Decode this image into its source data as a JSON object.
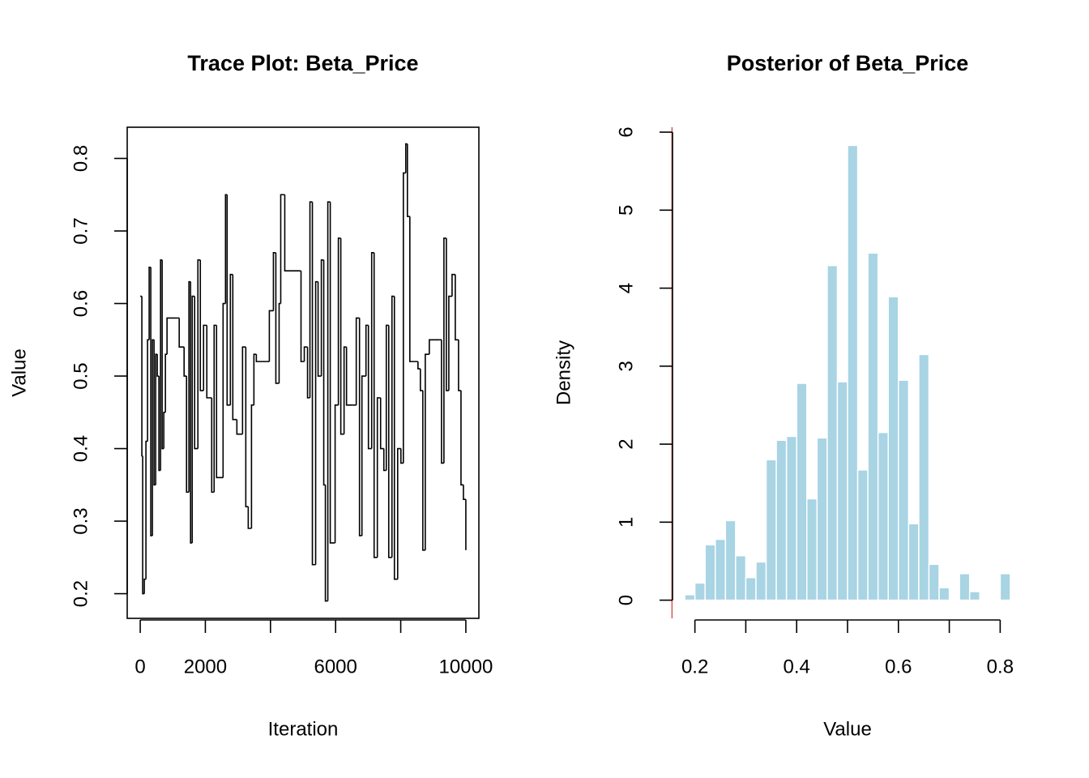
{
  "chart_data": [
    {
      "type": "line",
      "title": "Trace Plot: Beta_Price",
      "xlabel": "Iteration",
      "ylabel": "Value",
      "drawstyle": "steps-post",
      "color": "#000000",
      "box": true,
      "x": [
        0,
        50,
        75,
        125,
        175,
        224,
        274,
        324,
        374,
        424,
        474,
        524,
        574,
        624,
        673,
        723,
        773,
        823,
        1147,
        1197,
        1347,
        1422,
        1496,
        1546,
        1596,
        1671,
        1771,
        1846,
        1945,
        2045,
        2195,
        2269,
        2344,
        2544,
        2619,
        2668,
        2768,
        2843,
        2968,
        3142,
        3242,
        3317,
        3417,
        3491,
        3566,
        3890,
        3965,
        4090,
        4165,
        4265,
        4315,
        4439,
        4888,
        4938,
        5038,
        5138,
        5212,
        5287,
        5387,
        5462,
        5562,
        5636,
        5686,
        5761,
        5836,
        5985,
        6085,
        6160,
        6260,
        6335,
        6534,
        6634,
        6734,
        6809,
        6933,
        7008,
        7108,
        7183,
        7282,
        7382,
        7482,
        7557,
        7632,
        7731,
        7806,
        7906,
        8006,
        8081,
        8155,
        8205,
        8280,
        8530,
        8604,
        8679,
        8754,
        8878,
        9203,
        9253,
        9327,
        9402,
        9477,
        9577,
        9676,
        9776,
        9851,
        9926,
        10000
      ],
      "values": [
        0.61,
        0.39,
        0.2,
        0.22,
        0.41,
        0.55,
        0.65,
        0.28,
        0.55,
        0.35,
        0.53,
        0.5,
        0.37,
        0.66,
        0.4,
        0.45,
        0.53,
        0.58,
        0.58,
        0.54,
        0.5,
        0.34,
        0.63,
        0.27,
        0.61,
        0.4,
        0.66,
        0.48,
        0.57,
        0.47,
        0.34,
        0.57,
        0.36,
        0.6,
        0.75,
        0.46,
        0.64,
        0.44,
        0.42,
        0.54,
        0.32,
        0.29,
        0.46,
        0.53,
        0.52,
        0.52,
        0.59,
        0.67,
        0.49,
        0.6,
        0.75,
        0.645,
        0.645,
        0.52,
        0.54,
        0.47,
        0.74,
        0.24,
        0.63,
        0.5,
        0.66,
        0.35,
        0.19,
        0.74,
        0.27,
        0.46,
        0.69,
        0.42,
        0.54,
        0.46,
        0.46,
        0.58,
        0.28,
        0.5,
        0.57,
        0.4,
        0.67,
        0.25,
        0.47,
        0.4,
        0.37,
        0.57,
        0.25,
        0.61,
        0.22,
        0.4,
        0.38,
        0.78,
        0.82,
        0.72,
        0.52,
        0.51,
        0.48,
        0.26,
        0.53,
        0.55,
        0.55,
        0.38,
        0.69,
        0.48,
        0.61,
        0.64,
        0.55,
        0.48,
        0.35,
        0.33,
        0.26
      ],
      "xlim": [
        -400,
        10400
      ],
      "ylim": [
        0.166,
        0.843
      ],
      "xticks": [
        0,
        2000,
        {
          "value": 4000,
          "label": null
        },
        6000,
        {
          "value": 8000,
          "label": null
        },
        10000
      ],
      "yticks": [
        0.2,
        0.3,
        0.4,
        0.5,
        0.6,
        0.7,
        0.8
      ]
    },
    {
      "type": "histogram",
      "title": "Posterior of Beta_Price",
      "xlabel": "Value",
      "ylabel": "Density",
      "color": "#a8d4e4",
      "edgecolor": "#ffffff",
      "box": false,
      "bins": [
        0.18,
        0.2,
        0.22,
        0.24,
        0.26,
        0.28,
        0.3,
        0.32,
        0.34,
        0.36,
        0.38,
        0.4,
        0.42,
        0.44,
        0.46,
        0.48,
        0.5,
        0.52,
        0.54,
        0.56,
        0.58,
        0.6,
        0.62,
        0.64,
        0.66,
        0.68,
        0.7,
        0.72,
        0.74,
        0.76,
        0.78,
        0.8,
        0.82
      ],
      "values": [
        0.07,
        0.22,
        0.71,
        0.78,
        1.02,
        0.57,
        0.29,
        0.49,
        1.8,
        2.05,
        2.1,
        2.78,
        1.3,
        2.08,
        4.29,
        2.8,
        5.83,
        1.67,
        4.45,
        2.15,
        3.89,
        2.82,
        0.98,
        3.15,
        0.46,
        0.16,
        0,
        0.34,
        0.11,
        0,
        0,
        0.34
      ],
      "vline": 0.155,
      "vline_color": "#e05050",
      "xlim": [
        0.1544,
        0.8456
      ],
      "ylim": [
        -0.233,
        6.063
      ],
      "xticks": [
        0.2,
        {
          "value": 0.3,
          "label": null
        },
        0.4,
        {
          "value": 0.5,
          "label": null
        },
        0.6,
        {
          "value": 0.7,
          "label": null
        },
        0.8
      ],
      "yticks": [
        0,
        1,
        2,
        3,
        4,
        5,
        6
      ]
    }
  ]
}
